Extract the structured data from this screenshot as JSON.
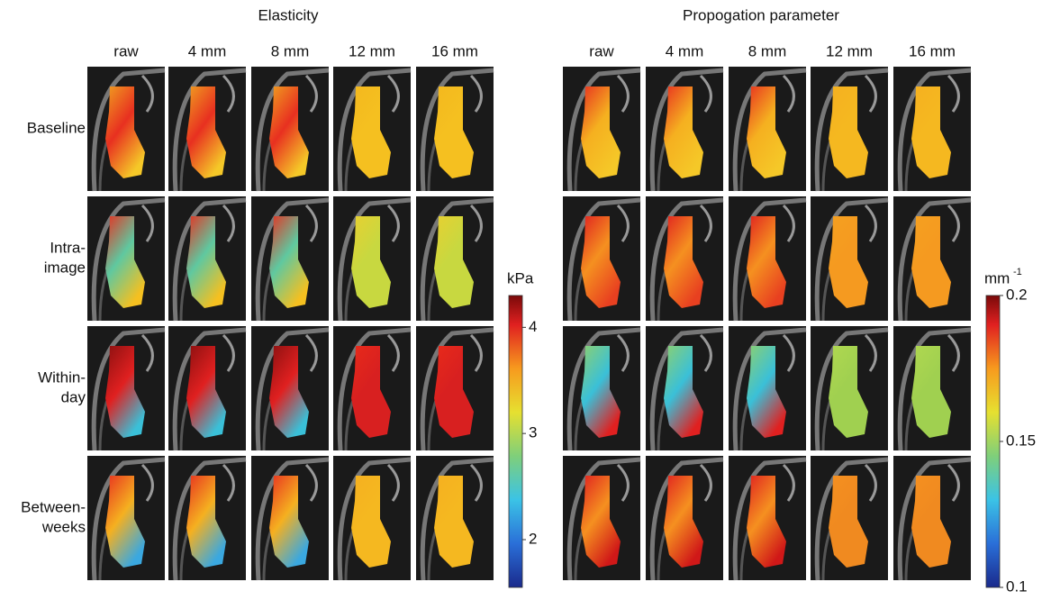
{
  "panels": [
    {
      "title": "Elasticity",
      "columns": [
        "raw",
        "4 mm",
        "8 mm",
        "12 mm",
        "16 mm"
      ],
      "rows": [
        [
          "Baseline"
        ],
        [
          "Intra-",
          "image"
        ],
        [
          "Within-",
          "day"
        ],
        [
          "Between-",
          "weeks"
        ]
      ],
      "colorbar": {
        "unit": "kPa",
        "lim": [
          1.55,
          4.3
        ],
        "ticks": [
          2,
          3,
          4
        ]
      }
    },
    {
      "title": "Propogation parameter",
      "columns": [
        "raw",
        "4 mm",
        "8 mm",
        "12 mm",
        "16 mm"
      ],
      "colorbar": {
        "unit": "mm",
        "unit_sup": "-1",
        "lim": [
          0.1,
          0.2
        ],
        "ticks": [
          0.1,
          0.15,
          0.2
        ]
      }
    }
  ]
}
